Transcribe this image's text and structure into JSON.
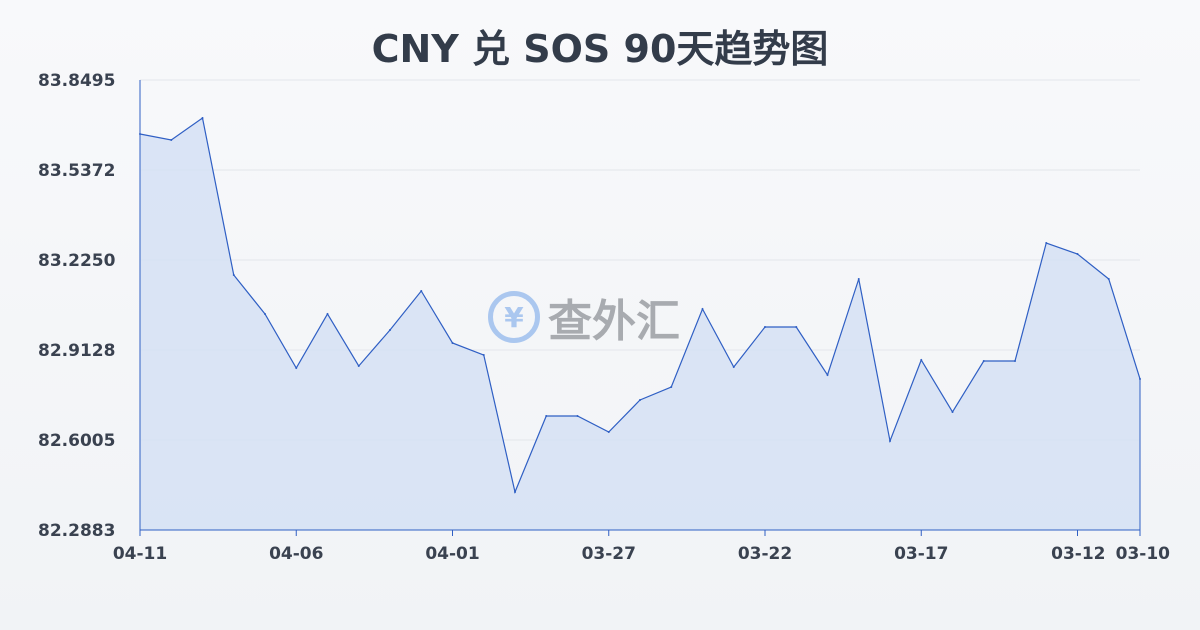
{
  "chart_data": {
    "type": "area",
    "title": "CNY 兑 SOS 90天趋势图",
    "xlabel": "",
    "ylabel": "",
    "ylim": [
      82.2883,
      83.8495
    ],
    "y_ticks": [
      "83.8495",
      "83.5372",
      "83.2250",
      "82.9128",
      "82.6005",
      "82.2883"
    ],
    "x_ticks": [
      {
        "index": 0,
        "label": "04-11"
      },
      {
        "index": 5,
        "label": "04-06"
      },
      {
        "index": 10,
        "label": "04-01"
      },
      {
        "index": 15,
        "label": "03-27"
      },
      {
        "index": 20,
        "label": "03-22"
      },
      {
        "index": 25,
        "label": "03-17"
      },
      {
        "index": 30,
        "label": "03-12"
      },
      {
        "index": 32,
        "label": "03-10"
      }
    ],
    "values": [
      83.6622,
      83.6413,
      83.7177,
      83.173,
      83.0377,
      82.8503,
      83.0377,
      82.8573,
      82.9822,
      83.1175,
      82.9371,
      82.8954,
      82.4202,
      82.6838,
      82.6838,
      82.6283,
      82.7393,
      82.7844,
      83.055,
      82.8538,
      82.9926,
      82.9926,
      82.8261,
      83.1591,
      82.5971,
      82.8781,
      82.6977,
      82.8746,
      82.8746,
      83.284,
      83.2458,
      83.1591,
      82.8122
    ],
    "grid": true,
    "line_color": "#2f5fc4",
    "fill_color": "#d5e0f5"
  },
  "watermark": {
    "symbol": "¥",
    "text": "查外汇"
  }
}
